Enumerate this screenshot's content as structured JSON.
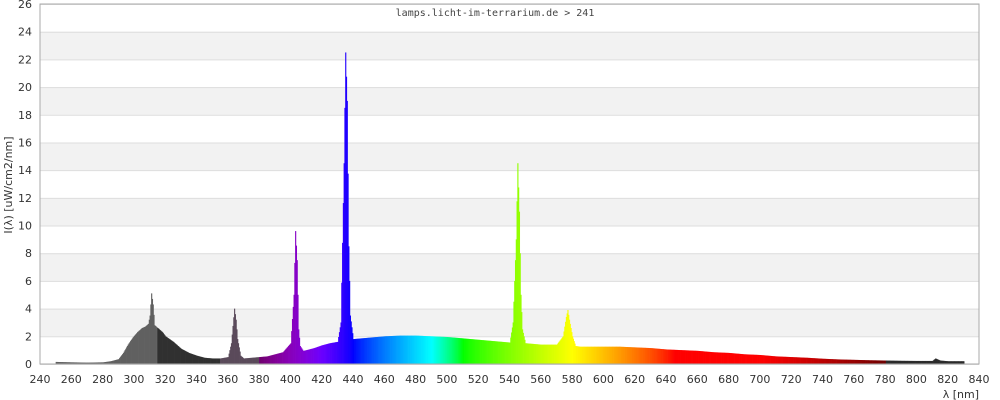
{
  "chart_data": {
    "type": "area",
    "title": "lamps.licht-im-terrarium.de > 241",
    "xlabel": "λ [nm]",
    "ylabel": "I(λ)  [uW/cm2/nm]",
    "xlim": [
      240,
      840
    ],
    "ylim": [
      0,
      26
    ],
    "x_ticks": [
      240,
      260,
      280,
      300,
      320,
      340,
      360,
      380,
      400,
      420,
      440,
      460,
      480,
      500,
      520,
      540,
      560,
      580,
      600,
      620,
      640,
      660,
      680,
      700,
      720,
      740,
      760,
      780,
      800,
      820,
      840
    ],
    "y_ticks": [
      0,
      2,
      4,
      6,
      8,
      10,
      12,
      14,
      16,
      18,
      20,
      22,
      24,
      26
    ],
    "grid": true,
    "legend": "none",
    "band_colors": {
      "uv_short": "#606060",
      "uv_long": "#303030",
      "uv_a": "#5a4a5a",
      "infrared": "#2a2a2a"
    },
    "series": [
      {
        "x": [
          250,
          260,
          270,
          280,
          285,
          290,
          293,
          296,
          299,
          302,
          305,
          307,
          309,
          310,
          311,
          312,
          313,
          315,
          318,
          320,
          325,
          330,
          335,
          340,
          345,
          350,
          355,
          360,
          362,
          364,
          365,
          366,
          368,
          370,
          375,
          380,
          385,
          390,
          395,
          400,
          402,
          403,
          404,
          405,
          406,
          408,
          410,
          415,
          420,
          425,
          430,
          432,
          434,
          435,
          436,
          437,
          438,
          440,
          445,
          450,
          460,
          470,
          480,
          490,
          500,
          510,
          520,
          530,
          540,
          542,
          544,
          545,
          546,
          547,
          548,
          550,
          555,
          560,
          570,
          574,
          576,
          577,
          578,
          580,
          582,
          585,
          590,
          600,
          610,
          620,
          630,
          640,
          650,
          660,
          670,
          680,
          690,
          700,
          710,
          720,
          730,
          740,
          750,
          760,
          770,
          780,
          790,
          800,
          810,
          812,
          815,
          820,
          830
        ],
        "y": [
          0.15,
          0.12,
          0.1,
          0.12,
          0.2,
          0.35,
          0.8,
          1.4,
          1.9,
          2.3,
          2.6,
          2.7,
          2.9,
          3.5,
          5.1,
          4.3,
          2.8,
          2.6,
          2.3,
          2.0,
          1.6,
          1.1,
          0.8,
          0.6,
          0.45,
          0.4,
          0.4,
          0.5,
          1.5,
          4.0,
          3.2,
          1.8,
          0.6,
          0.4,
          0.45,
          0.5,
          0.55,
          0.7,
          0.85,
          1.5,
          5.0,
          9.6,
          7.5,
          2.5,
          1.3,
          0.95,
          1.0,
          1.15,
          1.35,
          1.5,
          1.6,
          3.0,
          14.5,
          22.5,
          19.0,
          8.5,
          3.5,
          1.8,
          1.85,
          1.9,
          2.0,
          2.05,
          2.05,
          2.0,
          1.95,
          1.85,
          1.75,
          1.65,
          1.55,
          3.0,
          9.0,
          14.5,
          11.0,
          5.0,
          2.5,
          1.5,
          1.45,
          1.4,
          1.4,
          2.0,
          3.4,
          3.9,
          3.2,
          2.0,
          1.3,
          1.25,
          1.25,
          1.25,
          1.25,
          1.2,
          1.15,
          1.05,
          1.0,
          0.95,
          0.85,
          0.8,
          0.7,
          0.65,
          0.55,
          0.5,
          0.45,
          0.38,
          0.33,
          0.3,
          0.27,
          0.25,
          0.23,
          0.22,
          0.22,
          0.4,
          0.25,
          0.2,
          0.2
        ]
      }
    ]
  }
}
